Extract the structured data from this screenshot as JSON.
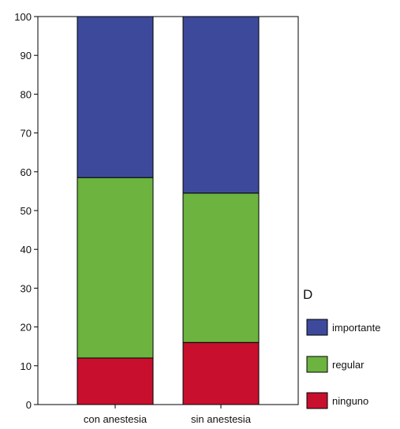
{
  "chart_data": {
    "type": "bar",
    "stacked": true,
    "percent_stacked": true,
    "categories": [
      "con anestesia",
      "sin anestesia"
    ],
    "series": [
      {
        "name": "ninguno",
        "values": [
          12,
          16
        ],
        "color": "#c8102e"
      },
      {
        "name": "regular",
        "values": [
          46.5,
          38.5
        ],
        "color": "#6cb33f"
      },
      {
        "name": "importante",
        "values": [
          41.5,
          45.5
        ],
        "color": "#3d4a9c"
      }
    ],
    "ylim": [
      0,
      100
    ],
    "yticks": [
      "0",
      "10",
      "20",
      "30",
      "40",
      "50",
      "60",
      "70",
      "80",
      "90",
      "100"
    ],
    "legend_title": "D",
    "legend_order": [
      "importante",
      "regular",
      "ninguno"
    ],
    "legend_position": "right",
    "grid": false,
    "title": "",
    "xlabel": "",
    "ylabel": ""
  }
}
